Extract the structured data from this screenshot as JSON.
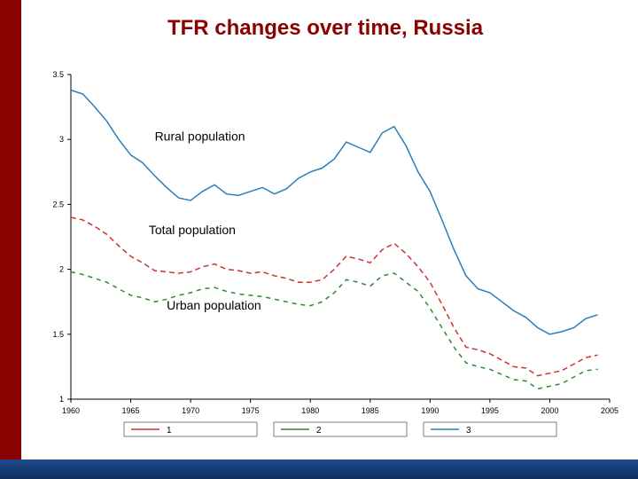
{
  "title": "TFR changes over time, Russia",
  "colors": {
    "sidebar": "#8b0000",
    "bottombar_top": "#1f4b8e",
    "bottombar_bottom": "#0f2d5a",
    "background": "#ffffff",
    "axis": "#000000",
    "title": "#8b0000"
  },
  "chart": {
    "type": "line",
    "xlim": [
      1960,
      2005
    ],
    "ylim": [
      1,
      3.5
    ],
    "xtick_step": 5,
    "ytick_step": 0.5,
    "xticks": [
      1960,
      1965,
      1970,
      1975,
      1980,
      1985,
      1990,
      1995,
      2000,
      2005
    ],
    "yticks": [
      1,
      1.5,
      2,
      2.5,
      3,
      3.5
    ],
    "axis_fontsize": 9,
    "inner_label_fontsize": 14,
    "series": [
      {
        "id": "rural",
        "label": "Rural population",
        "label_pos": {
          "x": 1967,
          "y": 2.99
        },
        "color": "#2a7fb8",
        "dash": "",
        "width": 1.5,
        "legend_key": "3",
        "data": [
          [
            1960,
            3.38
          ],
          [
            1961,
            3.35
          ],
          [
            1962,
            3.25
          ],
          [
            1963,
            3.14
          ],
          [
            1964,
            3.0
          ],
          [
            1965,
            2.88
          ],
          [
            1966,
            2.82
          ],
          [
            1967,
            2.72
          ],
          [
            1968,
            2.63
          ],
          [
            1969,
            2.55
          ],
          [
            1970,
            2.53
          ],
          [
            1971,
            2.6
          ],
          [
            1972,
            2.65
          ],
          [
            1973,
            2.58
          ],
          [
            1974,
            2.57
          ],
          [
            1975,
            2.6
          ],
          [
            1976,
            2.63
          ],
          [
            1977,
            2.58
          ],
          [
            1978,
            2.62
          ],
          [
            1979,
            2.7
          ],
          [
            1980,
            2.75
          ],
          [
            1981,
            2.78
          ],
          [
            1982,
            2.85
          ],
          [
            1983,
            2.98
          ],
          [
            1984,
            2.94
          ],
          [
            1985,
            2.9
          ],
          [
            1986,
            3.05
          ],
          [
            1987,
            3.1
          ],
          [
            1988,
            2.95
          ],
          [
            1989,
            2.75
          ],
          [
            1990,
            2.6
          ],
          [
            1991,
            2.38
          ],
          [
            1992,
            2.15
          ],
          [
            1993,
            1.95
          ],
          [
            1994,
            1.85
          ],
          [
            1995,
            1.82
          ],
          [
            1996,
            1.75
          ],
          [
            1997,
            1.68
          ],
          [
            1998,
            1.63
          ],
          [
            1999,
            1.55
          ],
          [
            2000,
            1.5
          ],
          [
            2001,
            1.52
          ],
          [
            2002,
            1.55
          ],
          [
            2003,
            1.62
          ],
          [
            2004,
            1.65
          ]
        ]
      },
      {
        "id": "total",
        "label": "Total population",
        "label_pos": {
          "x": 1966.5,
          "y": 2.27
        },
        "color": "#cc3333",
        "dash": "6 4",
        "width": 1.5,
        "legend_key": "1",
        "data": [
          [
            1960,
            2.4
          ],
          [
            1961,
            2.38
          ],
          [
            1962,
            2.33
          ],
          [
            1963,
            2.27
          ],
          [
            1964,
            2.18
          ],
          [
            1965,
            2.1
          ],
          [
            1966,
            2.05
          ],
          [
            1967,
            1.99
          ],
          [
            1968,
            1.98
          ],
          [
            1969,
            1.97
          ],
          [
            1970,
            1.98
          ],
          [
            1971,
            2.02
          ],
          [
            1972,
            2.04
          ],
          [
            1973,
            2.0
          ],
          [
            1974,
            1.99
          ],
          [
            1975,
            1.97
          ],
          [
            1976,
            1.98
          ],
          [
            1977,
            1.95
          ],
          [
            1978,
            1.93
          ],
          [
            1979,
            1.9
          ],
          [
            1980,
            1.9
          ],
          [
            1981,
            1.92
          ],
          [
            1982,
            2.0
          ],
          [
            1983,
            2.1
          ],
          [
            1984,
            2.08
          ],
          [
            1985,
            2.05
          ],
          [
            1986,
            2.15
          ],
          [
            1987,
            2.2
          ],
          [
            1988,
            2.12
          ],
          [
            1989,
            2.02
          ],
          [
            1990,
            1.9
          ],
          [
            1991,
            1.73
          ],
          [
            1992,
            1.55
          ],
          [
            1993,
            1.4
          ],
          [
            1994,
            1.38
          ],
          [
            1995,
            1.35
          ],
          [
            1996,
            1.3
          ],
          [
            1997,
            1.25
          ],
          [
            1998,
            1.24
          ],
          [
            1999,
            1.18
          ],
          [
            2000,
            1.2
          ],
          [
            2001,
            1.22
          ],
          [
            2002,
            1.27
          ],
          [
            2003,
            1.32
          ],
          [
            2004,
            1.34
          ]
        ]
      },
      {
        "id": "urban",
        "label": "Urban population",
        "label_pos": {
          "x": 1968,
          "y": 1.69
        },
        "color": "#2d8a2d",
        "dash": "5 5",
        "width": 1.5,
        "legend_key": "2",
        "data": [
          [
            1960,
            1.98
          ],
          [
            1961,
            1.96
          ],
          [
            1962,
            1.93
          ],
          [
            1963,
            1.9
          ],
          [
            1964,
            1.85
          ],
          [
            1965,
            1.8
          ],
          [
            1966,
            1.78
          ],
          [
            1967,
            1.75
          ],
          [
            1968,
            1.77
          ],
          [
            1969,
            1.8
          ],
          [
            1970,
            1.82
          ],
          [
            1971,
            1.85
          ],
          [
            1972,
            1.86
          ],
          [
            1973,
            1.83
          ],
          [
            1974,
            1.81
          ],
          [
            1975,
            1.8
          ],
          [
            1976,
            1.79
          ],
          [
            1977,
            1.77
          ],
          [
            1978,
            1.75
          ],
          [
            1979,
            1.73
          ],
          [
            1980,
            1.72
          ],
          [
            1981,
            1.75
          ],
          [
            1982,
            1.82
          ],
          [
            1983,
            1.92
          ],
          [
            1984,
            1.9
          ],
          [
            1985,
            1.87
          ],
          [
            1986,
            1.95
          ],
          [
            1987,
            1.97
          ],
          [
            1988,
            1.9
          ],
          [
            1989,
            1.83
          ],
          [
            1990,
            1.7
          ],
          [
            1991,
            1.55
          ],
          [
            1992,
            1.4
          ],
          [
            1993,
            1.28
          ],
          [
            1994,
            1.25
          ],
          [
            1995,
            1.23
          ],
          [
            1996,
            1.19
          ],
          [
            1997,
            1.15
          ],
          [
            1998,
            1.14
          ],
          [
            1999,
            1.08
          ],
          [
            2000,
            1.1
          ],
          [
            2001,
            1.12
          ],
          [
            2002,
            1.17
          ],
          [
            2003,
            1.22
          ],
          [
            2004,
            1.23
          ]
        ]
      }
    ],
    "legend": {
      "y": 1.0,
      "items": [
        {
          "key": "1",
          "color": "#cc3333",
          "dash": ""
        },
        {
          "key": "2",
          "color": "#2d8a2d",
          "dash": ""
        },
        {
          "key": "3",
          "color": "#2a7fb8",
          "dash": ""
        }
      ],
      "fontsize": 10
    }
  }
}
